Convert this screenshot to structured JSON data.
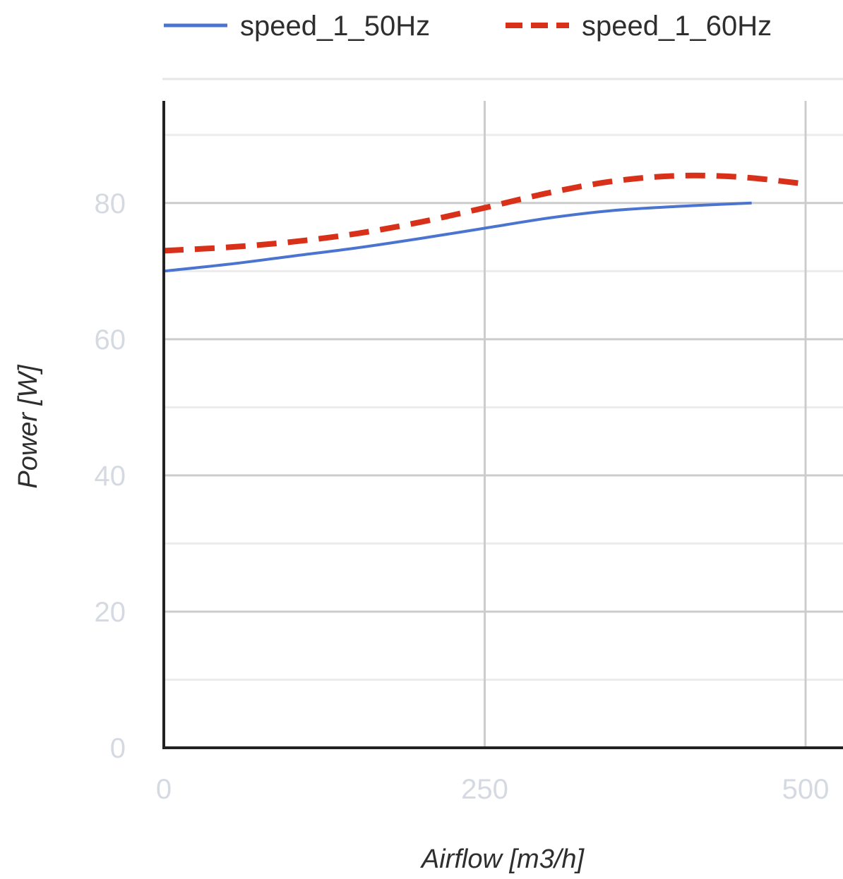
{
  "chart_data": {
    "type": "line",
    "xlabel": "Airflow [m3/h]",
    "ylabel": "Power [W]",
    "xlim": [
      0,
      500
    ],
    "ylim": [
      0,
      95
    ],
    "x_ticks": [
      0,
      250,
      500
    ],
    "x_tick_labels": [
      "0",
      "250",
      "500"
    ],
    "y_ticks": [
      0,
      20,
      40,
      60,
      80
    ],
    "y_tick_labels": [
      "0",
      "20",
      "40",
      "60",
      "80"
    ],
    "grid": true,
    "legend_position": "top",
    "series": [
      {
        "name": "speed_1_50Hz",
        "color": "#4a74cf",
        "dash": "solid",
        "x": [
          0,
          50,
          100,
          150,
          200,
          250,
          300,
          350,
          400,
          458
        ],
        "y": [
          70,
          71,
          72.2,
          73.4,
          74.8,
          76.3,
          77.8,
          78.9,
          79.5,
          80
        ]
      },
      {
        "name": "speed_1_60Hz",
        "color": "#d9301a",
        "dash": "dashed",
        "x": [
          0,
          50,
          100,
          150,
          200,
          250,
          300,
          350,
          400,
          450,
          500
        ],
        "y": [
          73,
          73.5,
          74.3,
          75.5,
          77.2,
          79.3,
          81.5,
          83.2,
          84,
          83.8,
          82.8
        ]
      }
    ]
  }
}
